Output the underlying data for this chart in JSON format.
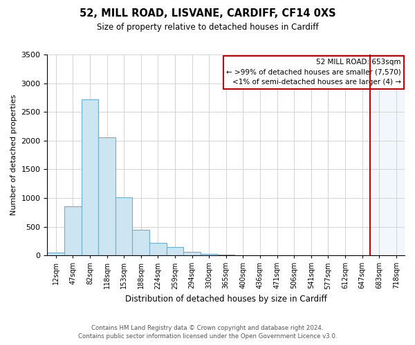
{
  "title": "52, MILL ROAD, LISVANE, CARDIFF, CF14 0XS",
  "subtitle": "Size of property relative to detached houses in Cardiff",
  "xlabel": "Distribution of detached houses by size in Cardiff",
  "ylabel": "Number of detached properties",
  "bin_labels": [
    "12sqm",
    "47sqm",
    "82sqm",
    "118sqm",
    "153sqm",
    "188sqm",
    "224sqm",
    "259sqm",
    "294sqm",
    "330sqm",
    "365sqm",
    "400sqm",
    "436sqm",
    "471sqm",
    "506sqm",
    "541sqm",
    "577sqm",
    "612sqm",
    "647sqm",
    "683sqm",
    "718sqm"
  ],
  "bar_heights": [
    55,
    850,
    2720,
    2060,
    1010,
    450,
    215,
    145,
    60,
    30,
    10,
    0,
    0,
    0,
    0,
    0,
    0,
    0,
    0,
    0,
    0
  ],
  "bar_color": "#cce5f0",
  "bar_edge_color": "#6baed6",
  "bar_color_highlight": "#ddeeff",
  "ylim": [
    0,
    3500
  ],
  "yticks": [
    0,
    500,
    1000,
    1500,
    2000,
    2500,
    3000,
    3500
  ],
  "property_line_bin": 18,
  "property_line_color": "#cc0000",
  "legend_title": "52 MILL ROAD: 653sqm",
  "legend_line1": "← >99% of detached houses are smaller (7,570)",
  "legend_line2": "<1% of semi-detached houses are larger (4) →",
  "footer_line1": "Contains HM Land Registry data © Crown copyright and database right 2024.",
  "footer_line2": "Contains public sector information licensed under the Open Government Licence v3.0.",
  "background_color": "#ffffff",
  "grid_color": "#cccccc"
}
